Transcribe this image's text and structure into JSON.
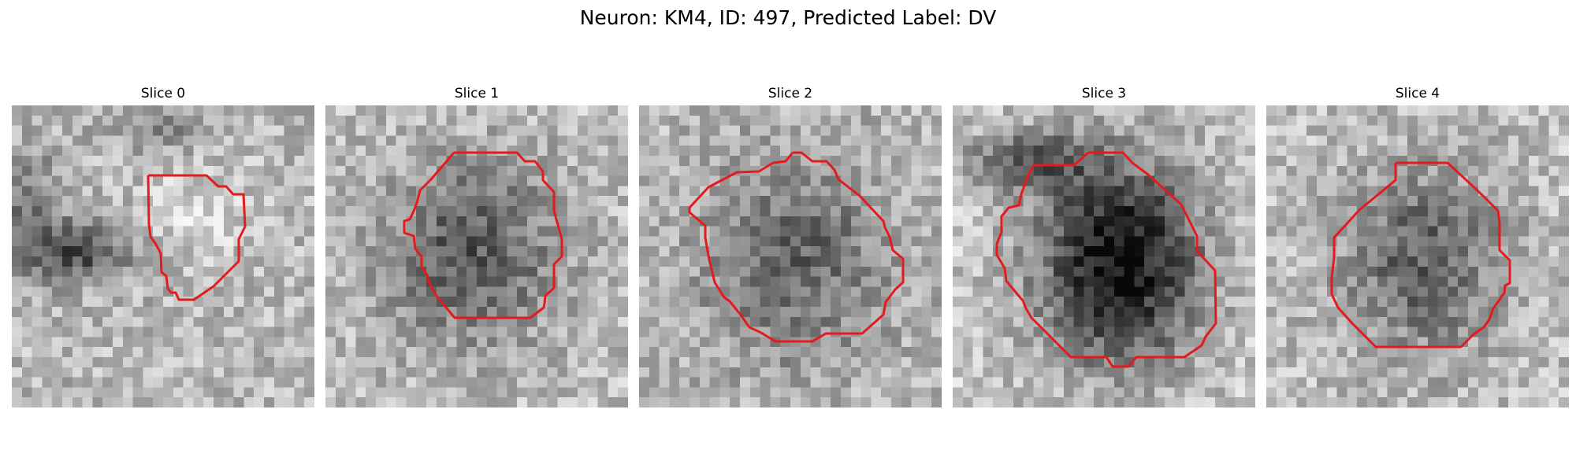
{
  "figure": {
    "title": "Neuron: KM4, ID: 497, Predicted Label: DV"
  },
  "colors": {
    "contour": "#e41a1c",
    "background": "#ffffff",
    "colormap": "gray"
  },
  "slices": [
    {
      "title": "Slice 0"
    },
    {
      "title": "Slice 1"
    },
    {
      "title": "Slice 2"
    },
    {
      "title": "Slice 3"
    },
    {
      "title": "Slice 4"
    }
  ]
}
